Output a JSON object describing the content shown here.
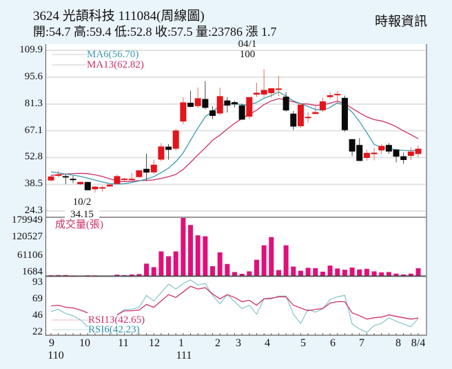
{
  "header": {
    "title": "3624  光頡科技 111084(周線圖)",
    "ohlc_line": "開:54.7 高:59.4 低:52.8 收:57.5 量:23786 漲 1.7",
    "source": "時報資訊"
  },
  "colors": {
    "up": "#e3141b",
    "down": "#0a0a0a",
    "ma6": "#3a9bb0",
    "ma13": "#cc2f6a",
    "volume": "#e0107a",
    "rsi13": "#cc2f6a",
    "rsi6": "#8cc7cc",
    "background": "#eaf4fb"
  },
  "price_axis": {
    "ticks": [
      "109.9",
      "95.6",
      "81.3",
      "67.1",
      "52.8",
      "38.5",
      "24.3"
    ]
  },
  "volume_axis": {
    "ticks": [
      "179949",
      "120527",
      "61106",
      "1684"
    ],
    "label": "成交量(張)"
  },
  "rsi_axis": {
    "ticks": [
      "93",
      "69",
      "46",
      "22"
    ]
  },
  "legend": {
    "ma6": "MA6(56.70)",
    "ma13": "MA13(62.82)",
    "rsi13": "RSI13(42.65)",
    "rsi6": "RSI6(42.23)"
  },
  "annotations": {
    "high_date": "04/1",
    "high_value": "100",
    "low_date": "10/2",
    "low_value": "34.15"
  },
  "x_axis": {
    "labels": [
      {
        "text": "9",
        "sub": "110"
      },
      {
        "text": "10",
        "sub": ""
      },
      {
        "text": "11",
        "sub": ""
      },
      {
        "text": "12",
        "sub": ""
      },
      {
        "text": "1",
        "sub": "111"
      },
      {
        "text": "2",
        "sub": ""
      },
      {
        "text": "3",
        "sub": ""
      },
      {
        "text": "4",
        "sub": ""
      },
      {
        "text": "5",
        "sub": ""
      },
      {
        "text": "6",
        "sub": ""
      },
      {
        "text": "7",
        "sub": ""
      },
      {
        "text": "8",
        "sub": ""
      },
      {
        "text": "8/4",
        "sub": ""
      }
    ]
  },
  "chart_data": {
    "type": "candlestick",
    "title": "3624 光頡科技 111084(周線圖)",
    "xlabel": "",
    "ylabel": "",
    "ylim": [
      24.3,
      109.9
    ],
    "grid": true,
    "last_bar": {
      "open": 54.7,
      "high": 59.4,
      "low": 52.8,
      "close": 57.5,
      "volume": 23786,
      "change": 1.7
    },
    "candles": [
      {
        "o": 40.6,
        "h": 43.3,
        "l": 40.1,
        "c": 42.7
      },
      {
        "o": 43.3,
        "h": 45.8,
        "l": 42.2,
        "c": 43.8
      },
      {
        "o": 42.9,
        "h": 43.8,
        "l": 38.6,
        "c": 42.2
      },
      {
        "o": 41.5,
        "h": 43.0,
        "l": 39.2,
        "c": 41.3
      },
      {
        "o": 38.6,
        "h": 40.0,
        "l": 38.1,
        "c": 39.8
      },
      {
        "o": 39.8,
        "h": 39.8,
        "l": 35.4,
        "c": 35.4
      },
      {
        "o": 35.9,
        "h": 37.5,
        "l": 34.2,
        "c": 37.3
      },
      {
        "o": 36.8,
        "h": 37.8,
        "l": 34.6,
        "c": 37.0
      },
      {
        "o": 37.4,
        "h": 39.2,
        "l": 37.1,
        "c": 38.4
      },
      {
        "o": 38.8,
        "h": 43.8,
        "l": 38.5,
        "c": 42.9
      },
      {
        "o": 41.4,
        "h": 42.0,
        "l": 40.3,
        "c": 41.6
      },
      {
        "o": 41.3,
        "h": 44.6,
        "l": 40.8,
        "c": 41.5
      },
      {
        "o": 42.4,
        "h": 46.1,
        "l": 42.1,
        "c": 46.0
      },
      {
        "o": 46.8,
        "h": 54.9,
        "l": 40.4,
        "c": 44.8
      },
      {
        "o": 44.9,
        "h": 51.6,
        "l": 44.1,
        "c": 49.0
      },
      {
        "o": 51.7,
        "h": 60.5,
        "l": 50.8,
        "c": 58.7
      },
      {
        "o": 58.6,
        "h": 60.0,
        "l": 51.7,
        "c": 56.9
      },
      {
        "o": 57.5,
        "h": 68.2,
        "l": 56.4,
        "c": 67.2
      },
      {
        "o": 72.0,
        "h": 85.0,
        "l": 70.5,
        "c": 82.2
      },
      {
        "o": 82.0,
        "h": 88.3,
        "l": 79.5,
        "c": 79.8
      },
      {
        "o": 80.2,
        "h": 90.1,
        "l": 79.1,
        "c": 84.4
      },
      {
        "o": 84.0,
        "h": 93.5,
        "l": 78.5,
        "c": 79.3
      },
      {
        "o": 77.9,
        "h": 80.0,
        "l": 73.3,
        "c": 75.0
      },
      {
        "o": 76.3,
        "h": 90.0,
        "l": 75.3,
        "c": 85.5
      },
      {
        "o": 83.2,
        "h": 85.0,
        "l": 76.8,
        "c": 80.5
      },
      {
        "o": 82.3,
        "h": 83.0,
        "l": 79.5,
        "c": 81.1
      },
      {
        "o": 80.6,
        "h": 81.5,
        "l": 73.4,
        "c": 73.0
      },
      {
        "o": 74.6,
        "h": 82.6,
        "l": 73.2,
        "c": 85.0
      },
      {
        "o": 86.3,
        "h": 92.6,
        "l": 85.0,
        "c": 87.3
      },
      {
        "o": 86.4,
        "h": 100.0,
        "l": 85.0,
        "c": 88.8
      },
      {
        "o": 87.1,
        "h": 89.2,
        "l": 84.8,
        "c": 89.7
      },
      {
        "o": 89.2,
        "h": 96.3,
        "l": 85.5,
        "c": 89.6
      },
      {
        "o": 85.2,
        "h": 87.6,
        "l": 77.3,
        "c": 77.9
      },
      {
        "o": 76.2,
        "h": 77.6,
        "l": 67.6,
        "c": 69.3
      },
      {
        "o": 69.5,
        "h": 79.9,
        "l": 68.6,
        "c": 81.0
      },
      {
        "o": 74.0,
        "h": 77.0,
        "l": 71.5,
        "c": 74.5
      },
      {
        "o": 76.0,
        "h": 80.0,
        "l": 76.0,
        "c": 77.0
      },
      {
        "o": 78.0,
        "h": 84.8,
        "l": 77.0,
        "c": 82.7
      },
      {
        "o": 85.0,
        "h": 87.6,
        "l": 84.0,
        "c": 86.0
      },
      {
        "o": 86.4,
        "h": 88.2,
        "l": 81.3,
        "c": 86.7
      },
      {
        "o": 84.6,
        "h": 85.8,
        "l": 66.6,
        "c": 67.4
      },
      {
        "o": 62.6,
        "h": 62.6,
        "l": 53.6,
        "c": 56.0
      },
      {
        "o": 59.5,
        "h": 63.1,
        "l": 50.9,
        "c": 51.0
      },
      {
        "o": 52.6,
        "h": 57.1,
        "l": 51.2,
        "c": 55.3
      },
      {
        "o": 54.6,
        "h": 58.0,
        "l": 51.3,
        "c": 55.4
      },
      {
        "o": 56.6,
        "h": 60.0,
        "l": 54.7,
        "c": 59.0
      },
      {
        "o": 59.5,
        "h": 60.5,
        "l": 54.7,
        "c": 56.0
      },
      {
        "o": 57.0,
        "h": 57.5,
        "l": 50.3,
        "c": 53.3
      },
      {
        "o": 53.5,
        "h": 55.5,
        "l": 49.5,
        "c": 51.5
      },
      {
        "o": 53.7,
        "h": 58.3,
        "l": 51.5,
        "c": 56.0
      },
      {
        "o": 54.7,
        "h": 59.4,
        "l": 52.8,
        "c": 57.5
      }
    ],
    "series": [
      {
        "name": "MA6",
        "values": [
          45.2,
          44.6,
          44.0,
          43.4,
          42.8,
          41.8,
          40.8,
          39.8,
          38.9,
          38.7,
          38.9,
          39.5,
          40.3,
          41.4,
          42.6,
          44.8,
          47.2,
          50.6,
          55.3,
          62.0,
          68.5,
          74.5,
          77.5,
          80.2,
          81.3,
          81.5,
          81.0,
          80.8,
          82.2,
          84.4,
          85.8,
          87.8,
          85.5,
          83.0,
          81.5,
          80.0,
          78.4,
          78.0,
          79.5,
          82.0,
          80.5,
          77.0,
          72.0,
          66.0,
          59.8,
          58.2,
          57.6,
          57.0,
          56.6,
          56.5,
          56.7
        ]
      },
      {
        "name": "MA13",
        "values": [
          43.3,
          43.7,
          44.0,
          44.3,
          44.4,
          44.2,
          43.6,
          42.7,
          41.5,
          40.3,
          40.0,
          40.2,
          40.5,
          40.6,
          40.9,
          41.7,
          42.6,
          43.8,
          46.5,
          50.2,
          54.2,
          58.0,
          62.0,
          64.8,
          68.0,
          71.0,
          73.6,
          75.8,
          78.0,
          81.0,
          83.0,
          84.2,
          83.5,
          82.5,
          81.5,
          81.3,
          80.6,
          80.8,
          81.8,
          82.9,
          81.5,
          79.0,
          76.6,
          74.5,
          73.0,
          72.3,
          71.0,
          69.2,
          67.0,
          65.0,
          62.8
        ]
      },
      {
        "name": "Volume",
        "values": [
          1800,
          2500,
          2600,
          1200,
          0,
          1700,
          1500,
          0,
          0,
          3800,
          2300,
          4200,
          5700,
          38000,
          27000,
          76000,
          61000,
          76000,
          179949,
          158000,
          126000,
          123000,
          30000,
          73000,
          37000,
          12000,
          6500,
          14000,
          50000,
          95000,
          120527,
          18000,
          95000,
          29000,
          16000,
          25000,
          24000,
          13000,
          32000,
          23000,
          19000,
          26000,
          20000,
          22000,
          14000,
          11000,
          12000,
          7000,
          4500,
          7000,
          23786
        ]
      },
      {
        "name": "RSI13",
        "values": [
          60,
          61,
          58,
          57,
          54,
          50,
          null,
          null,
          null,
          47,
          53,
          53,
          54,
          62,
          58,
          67,
          76,
          72,
          80,
          88,
          84,
          86,
          77,
          70,
          76,
          72,
          66,
          68,
          61,
          70,
          71,
          73,
          73,
          61,
          57,
          53,
          55,
          56,
          64,
          66,
          66,
          50,
          46,
          41,
          43,
          44,
          47,
          45,
          43,
          41,
          42.65
        ]
      },
      {
        "name": "RSI6",
        "values": [
          52,
          55,
          49,
          46,
          40,
          30,
          null,
          null,
          null,
          47,
          55,
          55,
          58,
          75,
          67,
          79,
          91,
          84,
          92,
          97,
          90,
          92,
          75,
          63,
          76,
          66,
          56,
          61,
          48,
          70,
          70,
          74,
          74,
          48,
          35,
          55,
          51,
          56,
          69,
          73,
          75,
          34,
          27,
          22,
          32,
          35,
          43,
          38,
          34,
          30,
          42.23
        ]
      }
    ]
  }
}
